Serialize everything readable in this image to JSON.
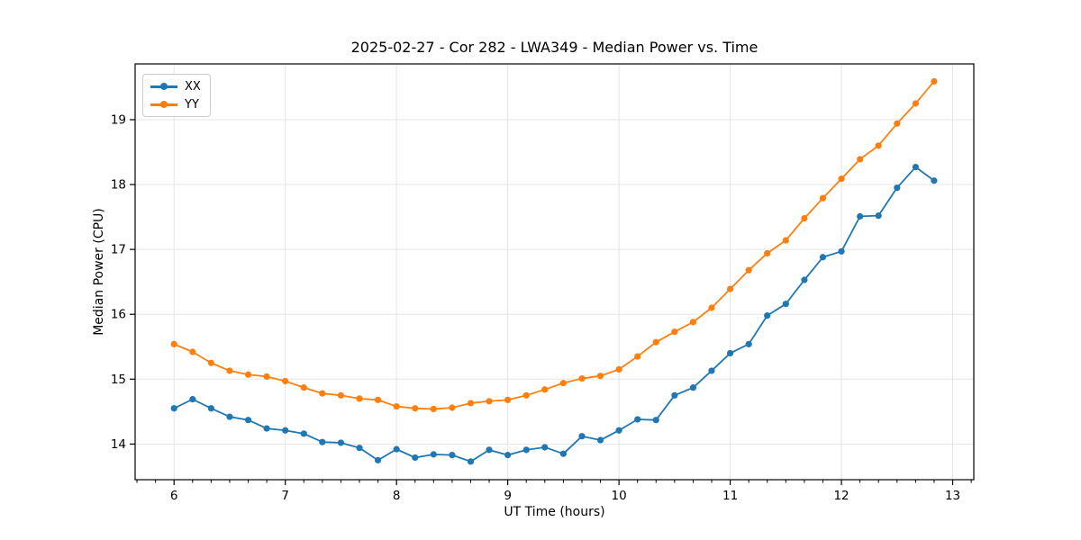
{
  "chart_data": {
    "type": "line",
    "title": "2025-02-27 - Cor 282 - LWA349 - Median Power vs. Time",
    "xlabel": "UT Time (hours)",
    "ylabel": "Median Power (CPU)",
    "x": [
      6.0,
      6.167,
      6.333,
      6.5,
      6.667,
      6.833,
      7.0,
      7.167,
      7.333,
      7.5,
      7.667,
      7.833,
      8.0,
      8.167,
      8.333,
      8.5,
      8.667,
      8.833,
      9.0,
      9.167,
      9.333,
      9.5,
      9.667,
      9.833,
      10.0,
      10.167,
      10.333,
      10.5,
      10.667,
      10.833,
      11.0,
      11.167,
      11.333,
      11.5,
      11.667,
      11.833,
      12.0,
      12.167,
      12.333,
      12.5,
      12.667,
      12.833
    ],
    "series": [
      {
        "name": "XX",
        "color": "#1f77b4",
        "values": [
          14.55,
          14.69,
          14.55,
          14.42,
          14.37,
          14.24,
          14.21,
          14.16,
          14.03,
          14.02,
          13.94,
          13.75,
          13.92,
          13.79,
          13.84,
          13.83,
          13.73,
          13.91,
          13.83,
          13.91,
          13.95,
          13.85,
          14.12,
          14.06,
          14.21,
          14.38,
          14.37,
          14.75,
          14.87,
          15.13,
          15.4,
          15.54,
          15.98,
          16.16,
          16.53,
          16.88,
          16.97,
          17.51,
          17.52,
          17.95,
          18.27,
          18.06
        ]
      },
      {
        "name": "YY",
        "color": "#ff7f0e",
        "values": [
          15.54,
          15.42,
          15.25,
          15.13,
          15.07,
          15.04,
          14.97,
          14.87,
          14.78,
          14.75,
          14.7,
          14.68,
          14.58,
          14.55,
          14.54,
          14.56,
          14.63,
          14.66,
          14.68,
          14.75,
          14.84,
          14.94,
          15.01,
          15.05,
          15.15,
          15.35,
          15.57,
          15.73,
          15.88,
          16.1,
          16.39,
          16.68,
          16.94,
          17.14,
          17.48,
          17.79,
          18.09,
          18.39,
          18.6,
          18.94,
          19.25,
          19.59
        ]
      }
    ],
    "xlim": [
      5.65,
      13.19
    ],
    "ylim": [
      13.45,
      19.86
    ],
    "xticks": [
      6,
      7,
      8,
      9,
      10,
      11,
      12,
      13
    ],
    "yticks": [
      14,
      15,
      16,
      17,
      18,
      19
    ],
    "x_minor_tick_step": 0.1667,
    "grid": true,
    "legend_position": "upper-left",
    "marker": "circle"
  },
  "style": {
    "grid_color": "#e5e5e5",
    "spine_color": "#000000",
    "background": "#ffffff"
  }
}
